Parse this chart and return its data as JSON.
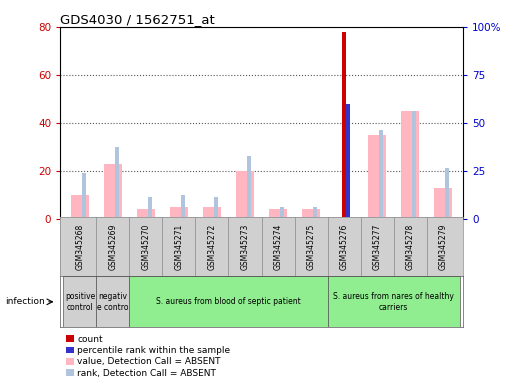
{
  "title": "GDS4030 / 1562751_at",
  "samples": [
    "GSM345268",
    "GSM345269",
    "GSM345270",
    "GSM345271",
    "GSM345272",
    "GSM345273",
    "GSM345274",
    "GSM345275",
    "GSM345276",
    "GSM345277",
    "GSM345278",
    "GSM345279"
  ],
  "count_values": [
    0,
    0,
    0,
    0,
    0,
    0,
    0,
    0,
    78,
    0,
    0,
    0
  ],
  "percentile_values": [
    0,
    0,
    0,
    0,
    0,
    0,
    0,
    0,
    60,
    0,
    0,
    0
  ],
  "absent_value": [
    10,
    23,
    4,
    5,
    5,
    20,
    4,
    4,
    0,
    35,
    45,
    13
  ],
  "absent_rank": [
    19,
    30,
    9,
    10,
    9,
    26,
    5,
    5,
    0,
    37,
    45,
    21
  ],
  "ylim_left": [
    0,
    80
  ],
  "ylim_right": [
    0,
    100
  ],
  "yticks_left": [
    0,
    20,
    40,
    60,
    80
  ],
  "yticks_right": [
    0,
    25,
    50,
    75,
    100
  ],
  "yticklabels_right": [
    "0",
    "25",
    "50",
    "75",
    "100%"
  ],
  "absent_bar_width": 0.55,
  "rank_bar_width": 0.12,
  "count_bar_width": 0.12,
  "group_labels": [
    {
      "text": "positive\ncontrol",
      "span": [
        0,
        0
      ],
      "color": "#d0d0d0"
    },
    {
      "text": "negativ\ne contro",
      "span": [
        1,
        1
      ],
      "color": "#d0d0d0"
    },
    {
      "text": "S. aureus from blood of septic patient",
      "span": [
        2,
        7
      ],
      "color": "#90ee90"
    },
    {
      "text": "S. aureus from nares of healthy\ncarriers",
      "span": [
        8,
        11
      ],
      "color": "#90ee90"
    }
  ],
  "infection_label": "infection",
  "legend_items": [
    {
      "label": "count",
      "color": "#cc0000"
    },
    {
      "label": "percentile rank within the sample",
      "color": "#3333cc"
    },
    {
      "label": "value, Detection Call = ABSENT",
      "color": "#ffb6c1"
    },
    {
      "label": "rank, Detection Call = ABSENT",
      "color": "#b0c4de"
    }
  ],
  "count_color": "#cc0000",
  "percentile_color": "#3333cc",
  "absent_value_color": "#ffb6c1",
  "absent_rank_color": "#b0c4de",
  "bg_color": "#ffffff",
  "tick_color_left": "#cc0000",
  "tick_color_right": "#0000cc",
  "grid_linestyle": "dotted",
  "grid_color": "#555555"
}
